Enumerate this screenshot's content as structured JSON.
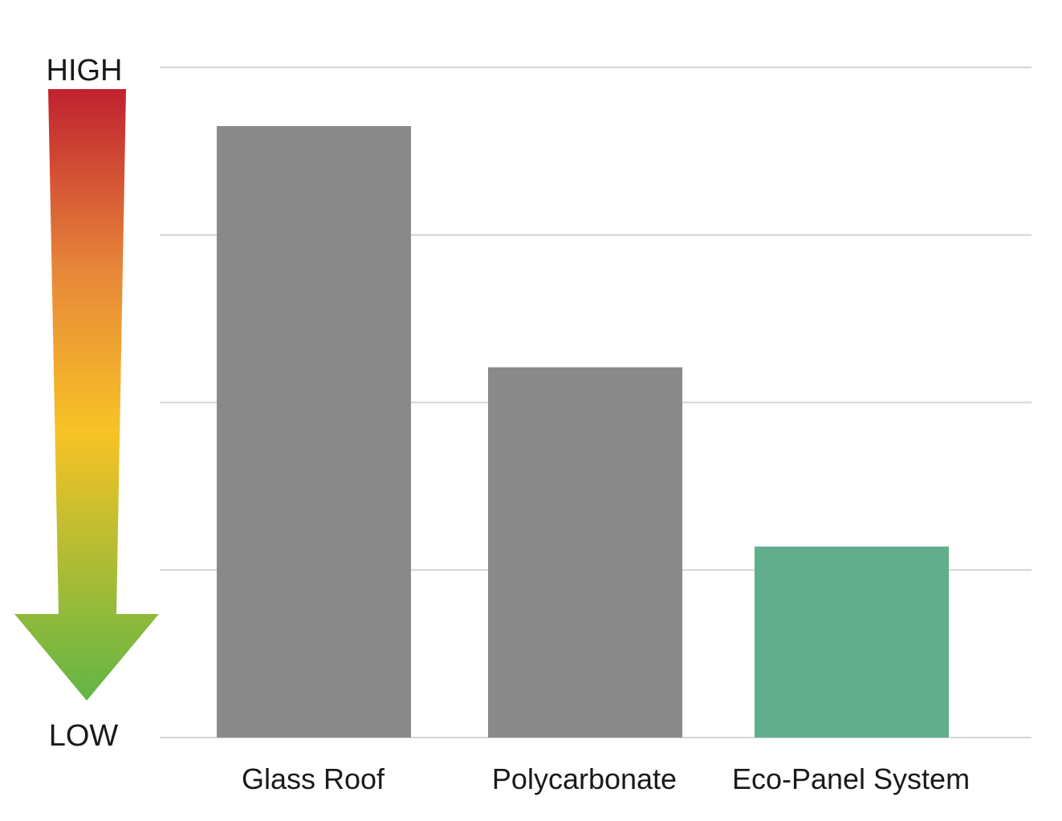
{
  "chart_data": {
    "type": "bar",
    "title": "",
    "xlabel": "",
    "ylabel": "",
    "scale_high_label": "HIGH",
    "scale_low_label": "LOW",
    "categories": [
      "Glass Roof",
      "Polycarbonate",
      "Eco-Panel System"
    ],
    "values": [
      3.65,
      2.21,
      1.14
    ],
    "ylim": [
      0,
      4
    ],
    "gridlines": [
      0,
      1,
      2,
      3,
      4
    ],
    "grid": true,
    "bar_colors": [
      "#8a8a8a",
      "#8a8a8a",
      "#61ae8c"
    ],
    "grid_color": "#d4d4d4",
    "arrow_gradient": [
      "#c0212f",
      "#e8883a",
      "#f7c325",
      "#62b545"
    ]
  }
}
